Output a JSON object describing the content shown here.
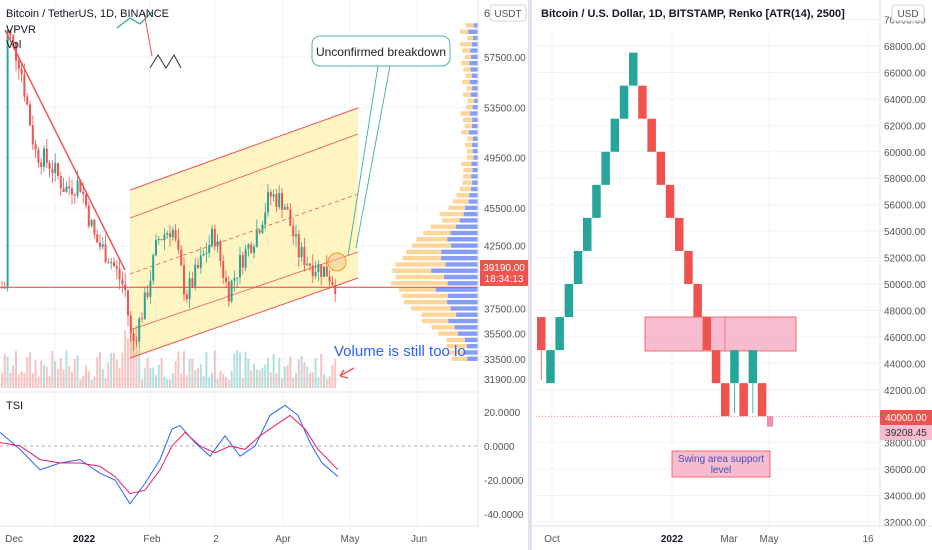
{
  "left_chart": {
    "title": "Bitcoin / TetherUS, 1D, BINANCE",
    "indicators": [
      "VPVR",
      "Vol"
    ],
    "axis_currency": "USDT",
    "price_ticks": [
      {
        "value": 57500,
        "label": "57500.00"
      },
      {
        "value": 53500,
        "label": "53500.00"
      },
      {
        "value": 49500,
        "label": "49500.00"
      },
      {
        "value": 45500,
        "label": "45500.00"
      },
      {
        "value": 42500,
        "label": "42500.00"
      },
      {
        "value": 37500,
        "label": "37500.00"
      },
      {
        "value": 35500,
        "label": "35500.00"
      },
      {
        "value": 33500,
        "label": "33500.00"
      },
      {
        "value": 31900,
        "label": "31900.00"
      }
    ],
    "price_top_label": "6",
    "last_price": {
      "value": 39190,
      "label": "39190.00",
      "countdown": "18:34:13",
      "color": "#ef5350"
    },
    "support_level": 39190,
    "x_labels": [
      "Dec",
      "2022",
      "Feb",
      "2",
      "Apr",
      "May",
      "Jun"
    ],
    "annotations": {
      "callout": "Unconfirmed breakdown",
      "volume_note": "Volume is still too lo"
    },
    "tsi": {
      "label": "TSI",
      "ticks": [
        {
          "value": 20,
          "label": "20.0000"
        },
        {
          "value": 0,
          "label": "0.0000"
        },
        {
          "value": -20,
          "label": "-20.0000"
        },
        {
          "value": -40,
          "label": "-40.0000"
        }
      ]
    }
  },
  "right_chart": {
    "title": "Bitcoin / U.S. Dollar, 1D, BITSTAMP, Renko [ATR(14), 2500]",
    "axis_currency": "USD",
    "price_ticks": [
      {
        "value": 70000,
        "label": "70000.00"
      },
      {
        "value": 68000,
        "label": "68000.00"
      },
      {
        "value": 66000,
        "label": "66000.00"
      },
      {
        "value": 64000,
        "label": "64000.00"
      },
      {
        "value": 62000,
        "label": "62000.00"
      },
      {
        "value": 60000,
        "label": "60000.00"
      },
      {
        "value": 58000,
        "label": "58000.00"
      },
      {
        "value": 56000,
        "label": "56000.00"
      },
      {
        "value": 54000,
        "label": "54000.00"
      },
      {
        "value": 52000,
        "label": "52000.00"
      },
      {
        "value": 50000,
        "label": "50000.00"
      },
      {
        "value": 48000,
        "label": "48000.00"
      },
      {
        "value": 46000,
        "label": "46000.00"
      },
      {
        "value": 44000,
        "label": "44000.00"
      },
      {
        "value": 42000,
        "label": "42000.00"
      },
      {
        "value": 38000,
        "label": "38000.00"
      },
      {
        "value": 36000,
        "label": "36000.00"
      },
      {
        "value": 34000,
        "label": "34000.00"
      },
      {
        "value": 32000,
        "label": "32000.00"
      }
    ],
    "level_40000": {
      "value": 40000,
      "label": "40000.00",
      "color": "#ef5350"
    },
    "last_price": {
      "value": 39208.45,
      "label": "39208.45"
    },
    "x_labels": [
      "Oct",
      "2022",
      "Mar",
      "May",
      "16"
    ],
    "annotations": {
      "support_box": "Swing area support level"
    },
    "renko_box_size": 2500
  },
  "colors": {
    "up": "#26a69a",
    "down": "#ef5350",
    "channel_fill": "#fff3b8",
    "accent_blue": "#2962ff"
  }
}
